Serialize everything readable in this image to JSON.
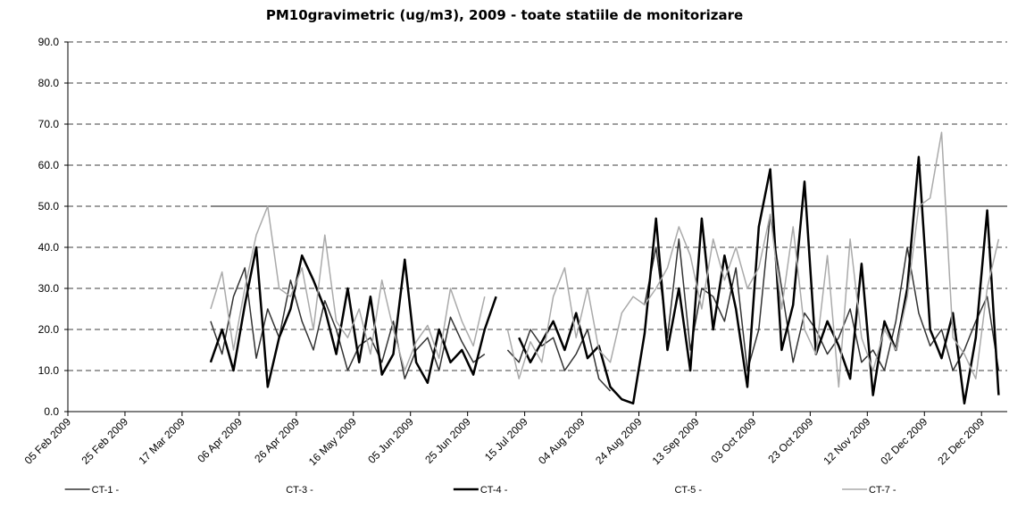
{
  "chart_data": {
    "type": "line",
    "title": "PM10gravimetric (ug/m3), 2009 - toate statiile de monitorizare",
    "x": [
      "2009-03-27",
      "2009-03-31",
      "2009-04-04",
      "2009-04-08",
      "2009-04-12",
      "2009-04-16",
      "2009-04-20",
      "2009-04-24",
      "2009-04-28",
      "2009-05-02",
      "2009-05-06",
      "2009-05-10",
      "2009-05-14",
      "2009-05-18",
      "2009-05-22",
      "2009-05-26",
      "2009-05-30",
      "2009-06-03",
      "2009-06-07",
      "2009-06-11",
      "2009-06-15",
      "2009-06-19",
      "2009-06-23",
      "2009-06-27",
      "2009-07-01",
      "2009-07-05",
      "2009-07-09",
      "2009-07-13",
      "2009-07-17",
      "2009-07-21",
      "2009-07-25",
      "2009-07-29",
      "2009-08-02",
      "2009-08-06",
      "2009-08-10",
      "2009-08-14",
      "2009-08-18",
      "2009-08-22",
      "2009-08-26",
      "2009-08-30",
      "2009-09-03",
      "2009-09-07",
      "2009-09-11",
      "2009-09-15",
      "2009-09-19",
      "2009-09-23",
      "2009-09-27",
      "2009-10-01",
      "2009-10-05",
      "2009-10-09",
      "2009-10-13",
      "2009-10-17",
      "2009-10-21",
      "2009-10-25",
      "2009-10-29",
      "2009-11-02",
      "2009-11-06",
      "2009-11-10",
      "2009-11-14",
      "2009-11-18",
      "2009-11-22",
      "2009-11-26",
      "2009-11-30",
      "2009-12-04",
      "2009-12-08",
      "2009-12-12",
      "2009-12-16",
      "2009-12-20",
      "2009-12-24",
      "2009-12-28"
    ],
    "series": [
      {
        "name": "CT-1 -",
        "color": "#333333",
        "width": 1.5,
        "values": [
          22,
          14,
          28,
          35,
          13,
          25,
          18,
          32,
          22,
          15,
          27,
          20,
          10,
          16,
          18,
          12,
          22,
          8,
          15,
          18,
          10,
          23,
          17,
          12,
          14,
          null,
          15,
          12,
          20,
          16,
          18,
          10,
          14,
          20,
          8,
          5,
          null,
          null,
          26,
          40,
          18,
          42,
          15,
          30,
          28,
          22,
          35,
          10,
          20,
          48,
          30,
          12,
          24,
          20,
          14,
          18,
          25,
          12,
          15,
          10,
          22,
          40,
          24,
          16,
          20,
          10,
          15,
          22,
          28,
          10
        ]
      },
      {
        "name": "CT-3 -",
        "color": "#ffffff",
        "width": 1.5,
        "values": [
          null,
          null,
          null,
          null,
          null,
          null,
          null,
          null,
          null,
          null,
          null,
          null,
          null,
          null,
          null,
          null,
          null,
          null,
          null,
          null,
          null,
          null,
          null,
          null,
          null,
          null,
          null,
          null,
          null,
          null,
          null,
          null,
          null,
          null,
          null,
          null,
          null,
          null,
          null,
          null,
          null,
          null,
          null,
          null,
          null,
          null,
          null,
          null,
          null,
          null,
          null,
          null,
          null,
          null,
          null,
          null,
          null,
          null,
          null,
          null,
          null,
          null,
          null,
          null,
          null,
          null,
          null,
          null,
          null,
          null
        ]
      },
      {
        "name": "CT-4 -",
        "color": "#000000",
        "width": 2.5,
        "values": [
          12,
          20,
          10,
          26,
          40,
          6,
          18,
          25,
          38,
          32,
          25,
          14,
          30,
          12,
          28,
          9,
          14,
          37,
          12,
          7,
          20,
          12,
          15,
          9,
          20,
          28,
          null,
          18,
          12,
          17,
          22,
          15,
          24,
          13,
          16,
          6,
          3,
          2,
          19,
          47,
          15,
          30,
          10,
          47,
          20,
          38,
          25,
          6,
          45,
          59,
          15,
          26,
          56,
          14,
          22,
          16,
          8,
          36,
          4,
          22,
          15,
          30,
          62,
          20,
          13,
          24,
          2,
          18,
          49,
          4
        ]
      },
      {
        "name": "CT-5 -",
        "color": "#ffffff",
        "width": 1.5,
        "values": [
          null,
          null,
          null,
          null,
          null,
          null,
          null,
          null,
          null,
          null,
          null,
          null,
          null,
          null,
          null,
          null,
          null,
          null,
          null,
          null,
          null,
          null,
          null,
          null,
          null,
          null,
          null,
          null,
          null,
          null,
          null,
          null,
          null,
          null,
          null,
          null,
          null,
          null,
          null,
          null,
          null,
          null,
          null,
          null,
          null,
          null,
          null,
          null,
          null,
          null,
          null,
          null,
          null,
          null,
          null,
          null,
          null,
          null,
          null,
          null,
          null,
          null,
          null,
          null,
          null,
          null,
          null,
          null,
          null,
          null
        ]
      },
      {
        "name": "CT-7 -",
        "color": "#aaaaaa",
        "width": 1.5,
        "values": [
          25,
          34,
          15,
          30,
          43,
          50,
          30,
          28,
          35,
          20,
          43,
          22,
          18,
          25,
          14,
          32,
          20,
          10,
          17,
          21,
          13,
          30,
          22,
          16,
          28,
          null,
          20,
          8,
          17,
          12,
          28,
          35,
          18,
          30,
          15,
          12,
          24,
          28,
          26,
          30,
          35,
          45,
          38,
          25,
          42,
          32,
          40,
          30,
          35,
          48,
          25,
          45,
          20,
          14,
          38,
          6,
          42,
          18,
          10,
          20,
          15,
          28,
          50,
          52,
          68,
          18,
          14,
          8,
          30,
          42
        ]
      }
    ],
    "limit_line": {
      "value": 50,
      "color": "#888888"
    },
    "xlim": [
      "2009-02-05",
      "2009-12-31"
    ],
    "xticks": [
      {
        "value": "2009-02-05",
        "label": "05 Feb 2009"
      },
      {
        "value": "2009-02-25",
        "label": "25 Feb 2009"
      },
      {
        "value": "2009-03-17",
        "label": "17 Mar 2009"
      },
      {
        "value": "2009-04-06",
        "label": "06 Apr 2009"
      },
      {
        "value": "2009-04-26",
        "label": "26 Apr 2009"
      },
      {
        "value": "2009-05-16",
        "label": "16 May 2009"
      },
      {
        "value": "2009-06-05",
        "label": "05 Jun 2009"
      },
      {
        "value": "2009-06-25",
        "label": "25 Jun 2009"
      },
      {
        "value": "2009-07-15",
        "label": "15 Jul 2009"
      },
      {
        "value": "2009-08-04",
        "label": "04 Aug 2009"
      },
      {
        "value": "2009-08-24",
        "label": "24 Aug 2009"
      },
      {
        "value": "2009-09-13",
        "label": "13 Sep 2009"
      },
      {
        "value": "2009-10-03",
        "label": "03 Oct 2009"
      },
      {
        "value": "2009-10-23",
        "label": "23 Oct 2009"
      },
      {
        "value": "2009-11-12",
        "label": "12 Nov 2009"
      },
      {
        "value": "2009-12-02",
        "label": "02 Dec 2009"
      },
      {
        "value": "2009-12-22",
        "label": "22 Dec 2009"
      }
    ],
    "ylim": [
      0,
      90
    ],
    "yticks": [
      {
        "value": 0,
        "label": "0.0"
      },
      {
        "value": 10,
        "label": "10.0"
      },
      {
        "value": 20,
        "label": "20.0"
      },
      {
        "value": 30,
        "label": "30.0"
      },
      {
        "value": 40,
        "label": "40.0"
      },
      {
        "value": 50,
        "label": "50.0"
      },
      {
        "value": 60,
        "label": "60.0"
      },
      {
        "value": 70,
        "label": "70.0"
      },
      {
        "value": 80,
        "label": "80.0"
      },
      {
        "value": 90,
        "label": "90.0"
      }
    ],
    "grid": true,
    "legend": "bottom"
  }
}
